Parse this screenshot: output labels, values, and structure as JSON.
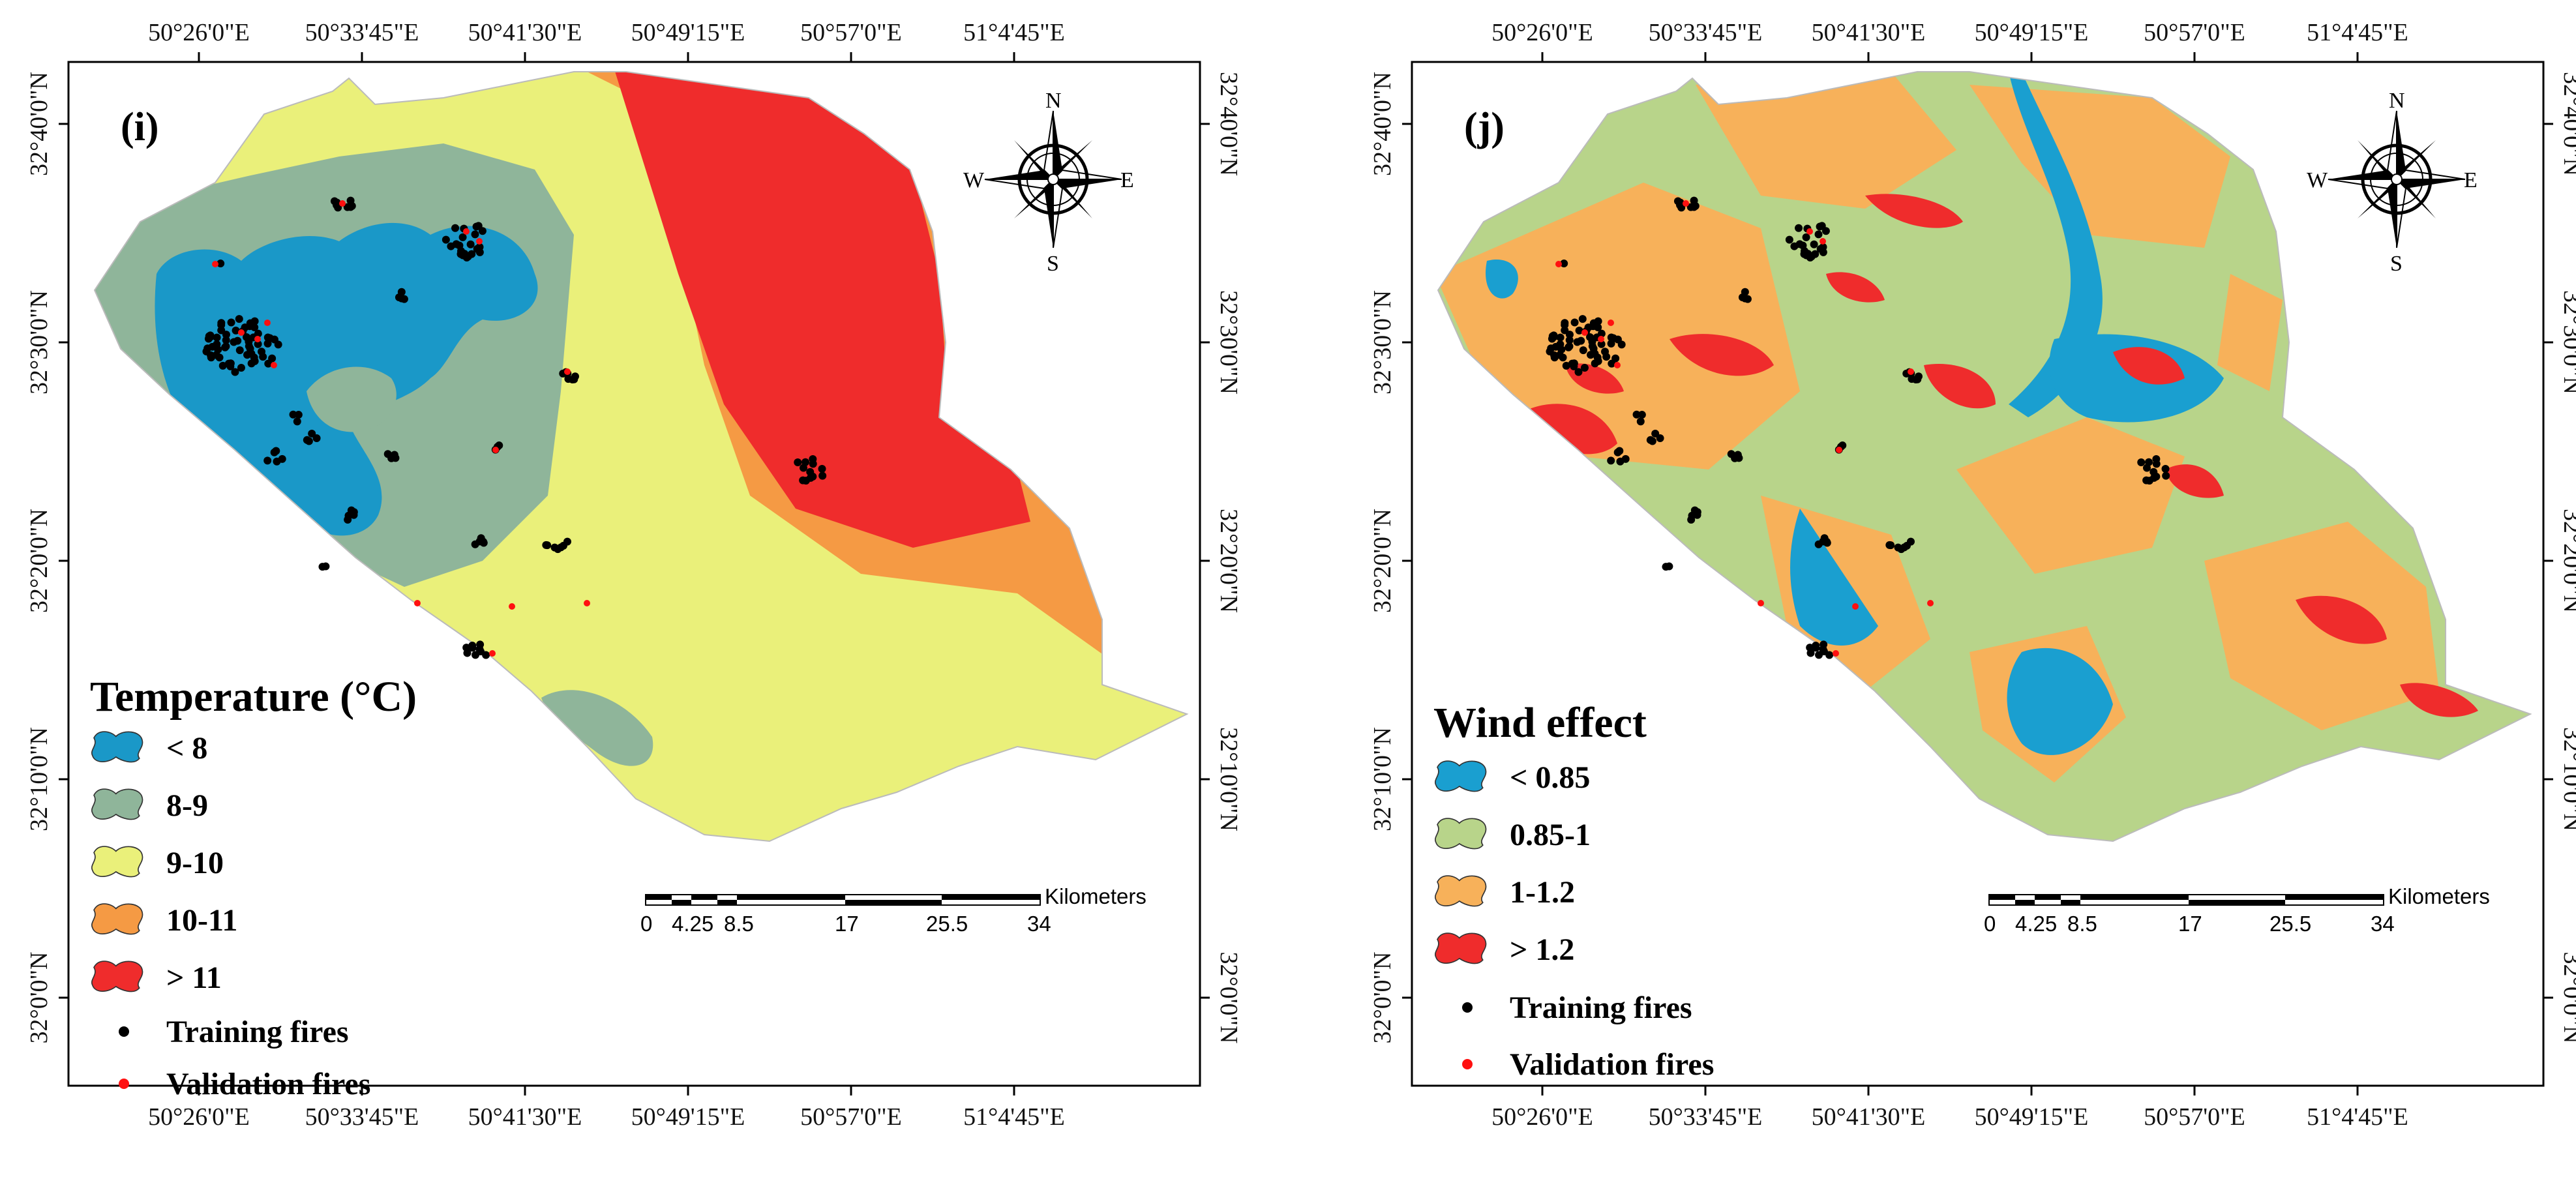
{
  "panels": [
    {
      "label": "(i)",
      "legend": {
        "title": "Temperature (°C)",
        "classes": [
          {
            "label": "< 8",
            "color": "#1a98c8"
          },
          {
            "label": "8-9",
            "color": "#8fb59a"
          },
          {
            "label": "9-10",
            "color": "#eaf07a"
          },
          {
            "label": "10-11",
            "color": "#f59a44"
          },
          {
            "label": "> 11",
            "color": "#ef2c2c"
          }
        ],
        "points": [
          {
            "label": "Training fires",
            "color": "#000000"
          },
          {
            "label": "Validation fires",
            "color": "#ff1010"
          }
        ]
      }
    },
    {
      "label": "(j)",
      "legend": {
        "title": "Wind effect",
        "classes": [
          {
            "label": "< 0.85",
            "color": "#1a9fd0"
          },
          {
            "label": "0.85-1",
            "color": "#b8d48a"
          },
          {
            "label": "1-1.2",
            "color": "#f7b15a"
          },
          {
            "label": "> 1.2",
            "color": "#ef2c2c"
          }
        ],
        "points": [
          {
            "label": "Training fires",
            "color": "#000000"
          },
          {
            "label": "Validation fires",
            "color": "#ff1010"
          }
        ]
      }
    }
  ],
  "axes": {
    "longitude_ticks": [
      "50°26'0\"E",
      "50°33'45\"E",
      "50°41'30\"E",
      "50°49'15\"E",
      "50°57'0\"E",
      "51°4'45\"E"
    ],
    "latitude_ticks": [
      "32°40'0\"N",
      "32°30'0\"N",
      "32°20'0\"N",
      "32°10'0\"N",
      "32°0'0\"N"
    ]
  },
  "scale_bar": {
    "unit": "Kilometers",
    "labels": [
      "0",
      "4.25",
      "8.5",
      "17",
      "25.5",
      "34"
    ]
  },
  "compass": {
    "n": "N",
    "s": "S",
    "e": "E",
    "w": "W"
  }
}
